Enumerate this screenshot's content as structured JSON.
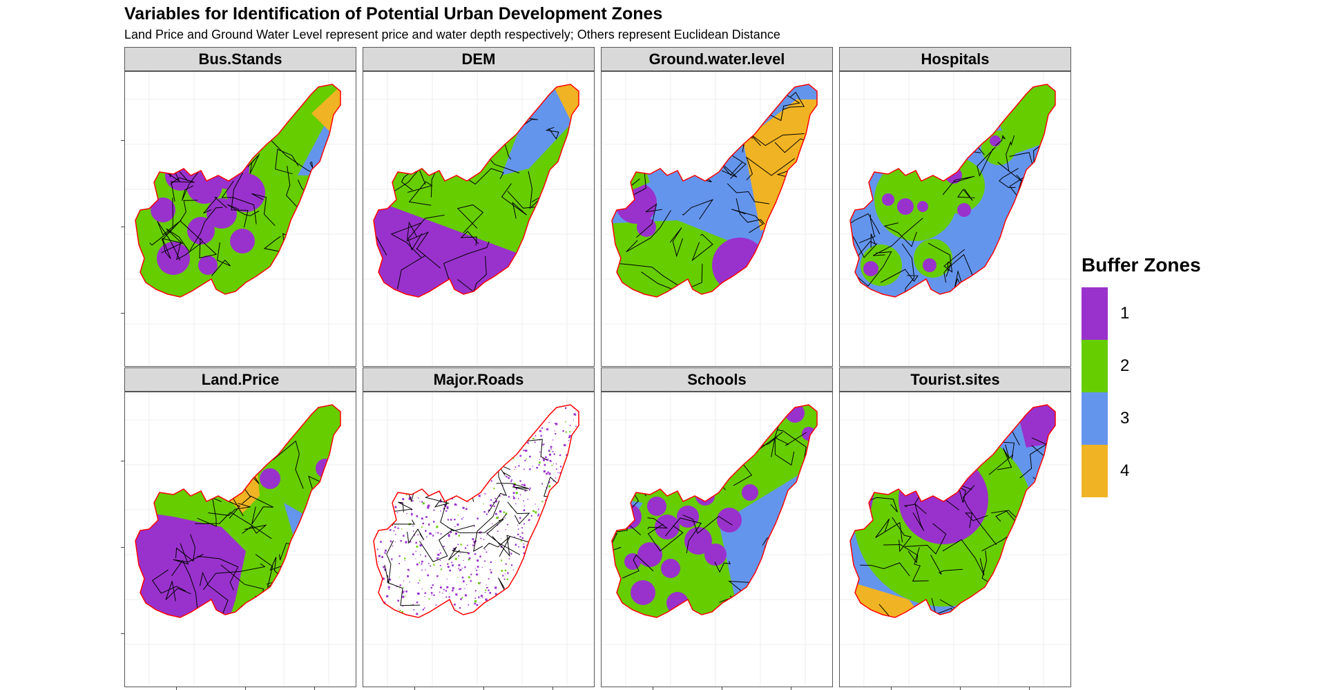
{
  "title": "Variables for Identification of Potential Urban Development Zones",
  "subtitle": "Land Price and Ground Water Level represent price and water depth respectively; Others represent Euclidean Distance",
  "facets": [
    {
      "label": "Bus.Stands",
      "pattern": "multi-center"
    },
    {
      "label": "DEM",
      "pattern": "diagonal"
    },
    {
      "label": "Ground.water.level",
      "pattern": "east-west"
    },
    {
      "label": "Hospitals",
      "pattern": "sparse-center"
    },
    {
      "label": "Land.Price",
      "pattern": "west-heavy"
    },
    {
      "label": "Major.Roads",
      "pattern": "speckled"
    },
    {
      "label": "Schools",
      "pattern": "dense-center"
    },
    {
      "label": "Tourist.sites",
      "pattern": "radial"
    }
  ],
  "legend": {
    "title": "Buffer Zones",
    "items": [
      {
        "label": "1",
        "color": "#9932cc"
      },
      {
        "label": "2",
        "color": "#66cd00"
      },
      {
        "label": "3",
        "color": "#6495ed"
      },
      {
        "label": "4",
        "color": "#f0b323"
      }
    ]
  },
  "colors": {
    "boundary": "#ff0000",
    "roads": "#000000",
    "strip_bg": "#d9d9d9",
    "panel_border": "#555555"
  }
}
